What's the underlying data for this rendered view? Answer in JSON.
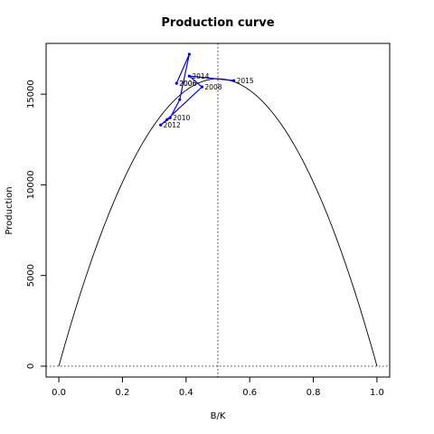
{
  "chart_data": {
    "type": "line",
    "title": "Production curve",
    "xlabel": "B/K",
    "ylabel": "Production",
    "xlim": [
      -0.04,
      1.04
    ],
    "ylim": [
      -600,
      17800
    ],
    "x_ticks": [
      0.0,
      0.2,
      0.4,
      0.6,
      0.8,
      1.0
    ],
    "x_tick_labels": [
      "0.0",
      "0.2",
      "0.4",
      "0.6",
      "0.8",
      "1.0"
    ],
    "y_ticks": [
      0,
      5000,
      10000,
      15000
    ],
    "y_tick_labels": [
      "0",
      "5000",
      "10000",
      "15000"
    ],
    "grid": false,
    "reference_lines": [
      {
        "orientation": "vertical",
        "value": 0.5,
        "style": "dotted",
        "color": "#000000"
      },
      {
        "orientation": "horizontal",
        "value": 0,
        "style": "dotted",
        "color": "#000000"
      }
    ],
    "curve": {
      "function": "parabola",
      "peak_x": 0.5,
      "peak_y": 15850,
      "color": "#000000"
    },
    "series": [
      {
        "color": "#0000ff",
        "x": [
          0.37,
          0.41,
          0.38,
          0.35,
          0.32,
          0.34,
          0.45,
          0.41,
          0.55
        ],
        "y": [
          15600,
          17200,
          14700,
          13700,
          13300,
          13600,
          15400,
          16000,
          15750
        ],
        "point_labels": [
          "2006",
          "",
          "",
          "2010",
          "2012",
          "",
          "2008",
          "2014",
          "2015"
        ]
      }
    ],
    "extra_labels": [
      {
        "text": "2006",
        "x": 0.37,
        "y": 15600
      }
    ]
  },
  "colors": {
    "trajectory": "#0000ff",
    "curve": "#000000",
    "frame": "#000000"
  }
}
